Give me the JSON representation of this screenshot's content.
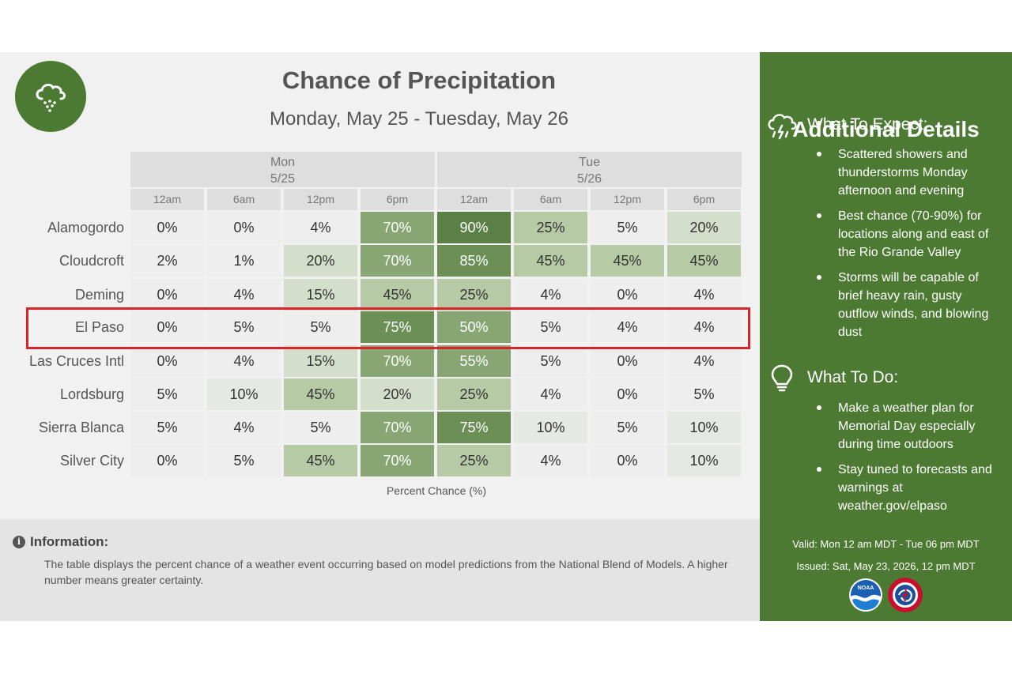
{
  "header": {
    "title": "Chance of Precipitation",
    "subtitle": "Monday, May 25 - Tuesday, May 26"
  },
  "chart_data": {
    "type": "heatmap",
    "title": "Chance of Precipitation",
    "subtitle": "Monday, May 25 - Tuesday, May 26",
    "days": [
      {
        "name": "Mon",
        "date": "5/25"
      },
      {
        "name": "Tue",
        "date": "5/26"
      }
    ],
    "times": [
      "12am",
      "6am",
      "12pm",
      "6pm",
      "12am",
      "6am",
      "12pm",
      "6pm"
    ],
    "locations": [
      "Alamogordo",
      "Cloudcroft",
      "Deming",
      "El Paso",
      "Las Cruces Intl",
      "Lordsburg",
      "Sierra Blanca",
      "Silver City"
    ],
    "values": [
      [
        0,
        0,
        4,
        70,
        90,
        25,
        5,
        20
      ],
      [
        2,
        1,
        20,
        70,
        85,
        45,
        45,
        45
      ],
      [
        0,
        4,
        15,
        45,
        25,
        4,
        0,
        4
      ],
      [
        0,
        5,
        5,
        75,
        50,
        5,
        4,
        4
      ],
      [
        0,
        4,
        15,
        70,
        55,
        5,
        0,
        4
      ],
      [
        5,
        10,
        45,
        20,
        25,
        4,
        0,
        5
      ],
      [
        5,
        4,
        5,
        70,
        75,
        10,
        5,
        10
      ],
      [
        0,
        5,
        45,
        70,
        25,
        4,
        0,
        10
      ]
    ],
    "value_suffix": "%",
    "xlabel": "Percent Chance (%)",
    "highlighted_location": "El Paso",
    "highlight_color": "#d9252a",
    "color_scale": [
      "#eeeeee",
      "#e6e8e3",
      "#d4dfcb",
      "#b7caa6",
      "#88a574",
      "#6b8f55",
      "#5a8046"
    ]
  },
  "information": {
    "title": "Information:",
    "text": "The table displays the percent chance of a weather event occurring based on model predictions from the National Blend of Models. A higher number means greater certainty."
  },
  "sidebar": {
    "title": "Additional Details",
    "expect_heading": "What To Expect:",
    "expect_items": [
      "Scattered showers and thunderstorms Monday afternoon and evening",
      "Best chance (70-90%) for locations along and east of the Rio Grande Valley",
      "Storms will be capable of brief heavy rain, gusty outflow winds, and blowing dust"
    ],
    "do_heading": "What To Do:",
    "do_items": [
      "Make a weather plan for Memorial Day especially during time outdoors",
      "Stay tuned to forecasts and warnings at weather.gov/elpaso"
    ],
    "valid": "Valid: Mon 12 am MDT - Tue 06 pm MDT",
    "issued": "Issued: Sat, May 23, 2026, 12 pm MDT",
    "noaa_logo_text": "NOAA",
    "nws_logo_text": "NATIONAL WEATHER SERVICE"
  },
  "colors": {
    "brand_green": "#4d7a32",
    "panel_gray": "#f1f1f1"
  }
}
